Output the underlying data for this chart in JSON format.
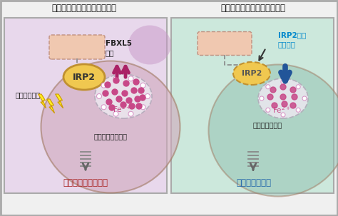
{
  "title_left": "鉄過剰による血液産生の障害",
  "title_right": "鉄過剰を標的とした治療開発",
  "outer_bg": "#c8c8c8",
  "left_panel_bg": "#e8d8ec",
  "right_panel_bg": "#cce8dc",
  "panel_border": "#aaaaaa",
  "cell_left_bg": "#d8b8cc",
  "cell_right_bg": "#aaccc0",
  "cell_border": "#a07860",
  "big_circle_left": "#c898b8",
  "big_circle_right": "#88b8a8",
  "fbxl5_box_fc": "#f0c8b0",
  "fbxl5_box_ec": "#c09080",
  "fbxl5_label": "FBXL5\n欠失",
  "irp2_label": "IRP2",
  "irp2_fc": "#f0c850",
  "irp2_ec": "#c09030",
  "fe_circle_fc": "#ece8f0",
  "fe_circle_ec": "#b0a8b8",
  "fe_dot_color": "#c84888",
  "fe_ring_color": "#d898c8",
  "arrow_up_color": "#aa2266",
  "arrow_down_color": "#225599",
  "inhibit_line_color": "#888888",
  "lightning_fill": "#ffee22",
  "lightning_edge": "#cc9900",
  "oxidative_label": "酸化ストレス",
  "cell_label_left": "細胞内の鉄の増加",
  "cell_label_right": "過剰な鉄の抑制",
  "irp2_therapy_line1": "IRP2分子",
  "irp2_therapy_line2": "標的療法",
  "irp2_therapy_color": "#0088cc",
  "left_bottom_text": "血液細胞の産生障害",
  "right_bottom_text": "血液産生の回復",
  "left_bottom_color": "#aa2222",
  "right_bottom_color": "#2266aa",
  "coil_arrow_color": "#666666",
  "coil_color": "#888888"
}
